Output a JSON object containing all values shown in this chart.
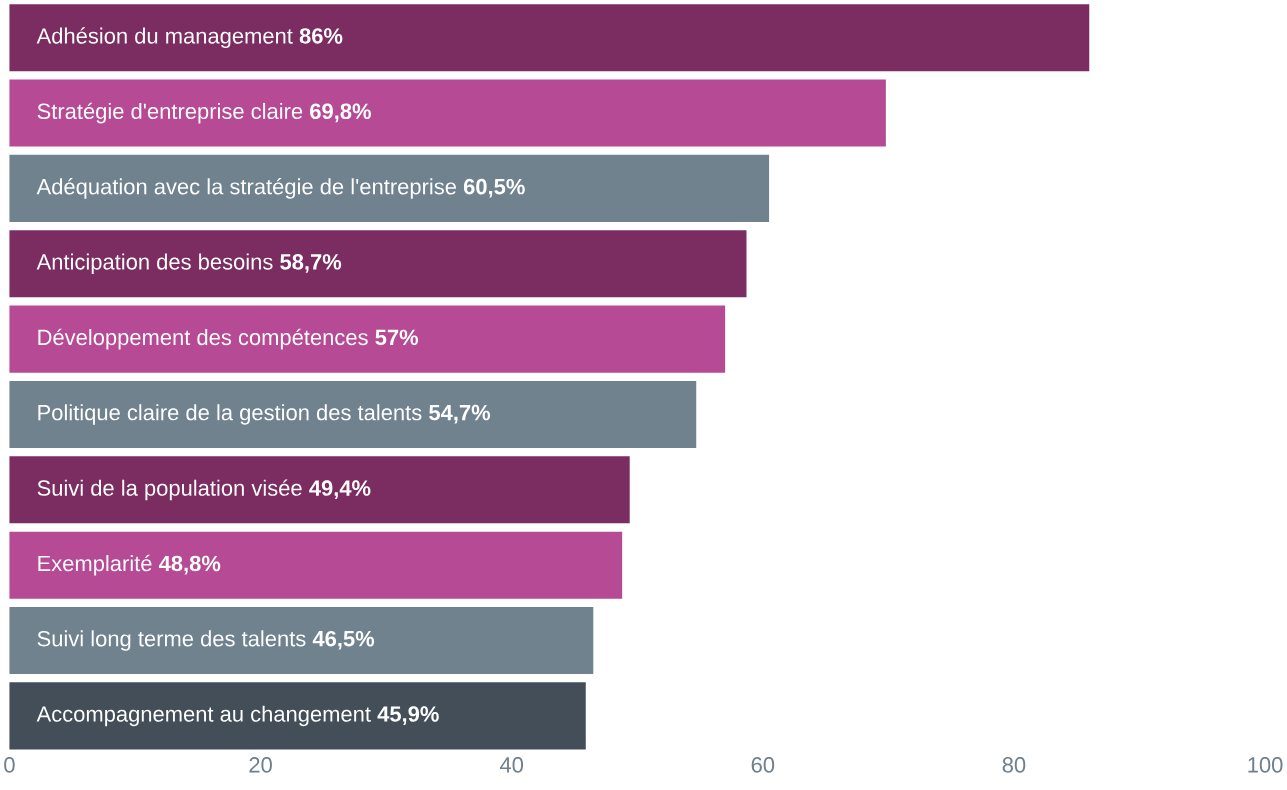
{
  "chart_data": {
    "type": "bar",
    "orientation": "horizontal",
    "categories": [
      "Adhésion du management",
      "Stratégie d'entreprise claire",
      "Adéquation avec la stratégie de l'entreprise",
      "Anticipation des besoins",
      "Développement des compétences",
      "Politique claire de la gestion des talents",
      "Suivi de la population visée",
      "Exemplarité",
      "Suivi long terme des talents",
      "Accompagnement au changement"
    ],
    "values": [
      86,
      69.8,
      60.5,
      58.7,
      57,
      54.7,
      49.4,
      48.8,
      46.5,
      45.9
    ],
    "value_labels": [
      "86%",
      "69,8%",
      "60,5%",
      "58,7%",
      "57%",
      "54,7%",
      "49,4%",
      "48,8%",
      "46,5%",
      "45,9%"
    ],
    "colors": [
      "#7b2d62",
      "#b64a95",
      "#71828f",
      "#7b2d62",
      "#b64a95",
      "#71828f",
      "#7b2d62",
      "#b64a95",
      "#71828f",
      "#434e58"
    ],
    "xlim": [
      0,
      100
    ],
    "xticks": [
      0,
      20,
      40,
      60,
      80,
      100
    ]
  }
}
